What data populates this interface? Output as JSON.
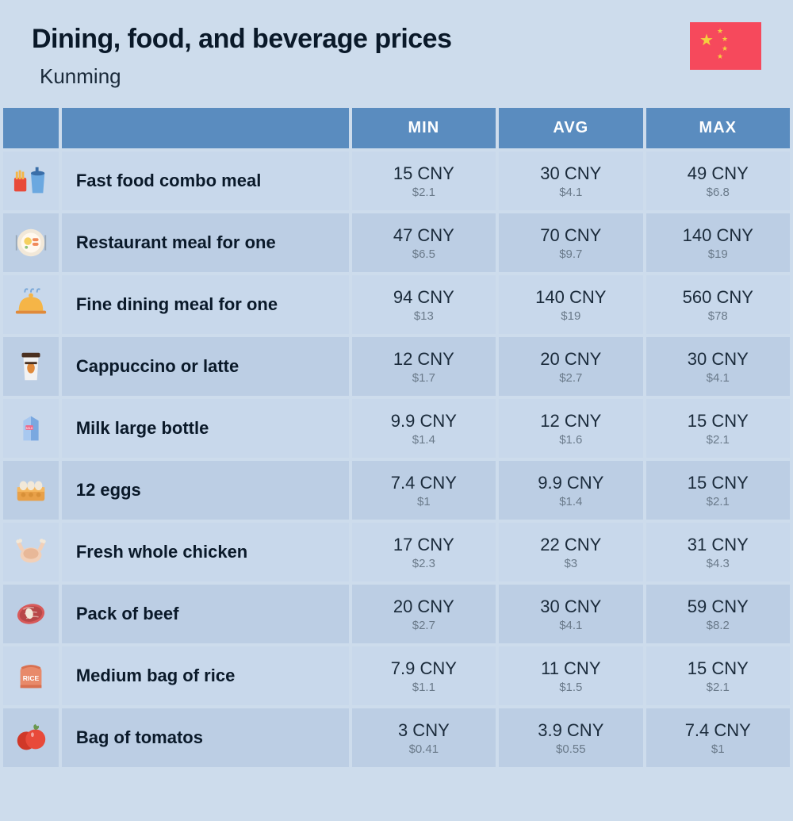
{
  "title": "Dining, food, and beverage prices",
  "subtitle": "Kunming",
  "flag": {
    "bg": "#f6495c",
    "star_color": "#f4d03f"
  },
  "columns": [
    "MIN",
    "AVG",
    "MAX"
  ],
  "colors": {
    "page_bg": "#cddcec",
    "header_bg": "#5a8cbf",
    "header_text": "#ffffff",
    "row_odd": "#c8d8eb",
    "row_even": "#bccee4",
    "text_dark": "#0a1929",
    "text_mid": "#1a2a3a",
    "text_muted": "#6a7a8a"
  },
  "rows": [
    {
      "icon": "fastfood",
      "label": "Fast food combo meal",
      "min_cny": "15 CNY",
      "min_usd": "$2.1",
      "avg_cny": "30 CNY",
      "avg_usd": "$4.1",
      "max_cny": "49 CNY",
      "max_usd": "$6.8"
    },
    {
      "icon": "plate",
      "label": "Restaurant meal for one",
      "min_cny": "47 CNY",
      "min_usd": "$6.5",
      "avg_cny": "70 CNY",
      "avg_usd": "$9.7",
      "max_cny": "140 CNY",
      "max_usd": "$19"
    },
    {
      "icon": "cloche",
      "label": "Fine dining meal for one",
      "min_cny": "94 CNY",
      "min_usd": "$13",
      "avg_cny": "140 CNY",
      "avg_usd": "$19",
      "max_cny": "560 CNY",
      "max_usd": "$78"
    },
    {
      "icon": "coffee",
      "label": "Cappuccino or latte",
      "min_cny": "12 CNY",
      "min_usd": "$1.7",
      "avg_cny": "20 CNY",
      "avg_usd": "$2.7",
      "max_cny": "30 CNY",
      "max_usd": "$4.1"
    },
    {
      "icon": "milk",
      "label": "Milk large bottle",
      "min_cny": "9.9 CNY",
      "min_usd": "$1.4",
      "avg_cny": "12 CNY",
      "avg_usd": "$1.6",
      "max_cny": "15 CNY",
      "max_usd": "$2.1"
    },
    {
      "icon": "eggs",
      "label": "12 eggs",
      "min_cny": "7.4 CNY",
      "min_usd": "$1",
      "avg_cny": "9.9 CNY",
      "avg_usd": "$1.4",
      "max_cny": "15 CNY",
      "max_usd": "$2.1"
    },
    {
      "icon": "chicken",
      "label": "Fresh whole chicken",
      "min_cny": "17 CNY",
      "min_usd": "$2.3",
      "avg_cny": "22 CNY",
      "avg_usd": "$3",
      "max_cny": "31 CNY",
      "max_usd": "$4.3"
    },
    {
      "icon": "beef",
      "label": "Pack of beef",
      "min_cny": "20 CNY",
      "min_usd": "$2.7",
      "avg_cny": "30 CNY",
      "avg_usd": "$4.1",
      "max_cny": "59 CNY",
      "max_usd": "$8.2"
    },
    {
      "icon": "rice",
      "label": "Medium bag of rice",
      "min_cny": "7.9 CNY",
      "min_usd": "$1.1",
      "avg_cny": "11 CNY",
      "avg_usd": "$1.5",
      "max_cny": "15 CNY",
      "max_usd": "$2.1"
    },
    {
      "icon": "tomato",
      "label": "Bag of tomatos",
      "min_cny": "3 CNY",
      "min_usd": "$0.41",
      "avg_cny": "3.9 CNY",
      "avg_usd": "$0.55",
      "max_cny": "7.4 CNY",
      "max_usd": "$1"
    }
  ],
  "icons": {
    "fastfood": {
      "colors": [
        "#f5b547",
        "#e08a3a",
        "#6ba8e0",
        "#3a6ea8"
      ]
    },
    "plate": {
      "colors": [
        "#f2e8d8",
        "#f08a5a",
        "#f5d060",
        "#8fc27a"
      ]
    },
    "cloche": {
      "colors": [
        "#f5b547",
        "#e08a3a",
        "#7aa8d8"
      ]
    },
    "coffee": {
      "colors": [
        "#f2f2f2",
        "#4a3020",
        "#e08a3a"
      ]
    },
    "milk": {
      "colors": [
        "#a8c8f0",
        "#7aa8e0",
        "#f06a8a"
      ]
    },
    "eggs": {
      "colors": [
        "#f5b860",
        "#e8a048",
        "#f2e8d8"
      ]
    },
    "chicken": {
      "colors": [
        "#f2d0b8",
        "#e8b898",
        "#f08a5a"
      ]
    },
    "beef": {
      "colors": [
        "#d85a5a",
        "#f2e8d8",
        "#b84848"
      ]
    },
    "rice": {
      "colors": [
        "#e88a6a",
        "#d87050",
        "#ffffff"
      ]
    },
    "tomato": {
      "colors": [
        "#e84a3a",
        "#d03828",
        "#6a9850"
      ]
    }
  }
}
